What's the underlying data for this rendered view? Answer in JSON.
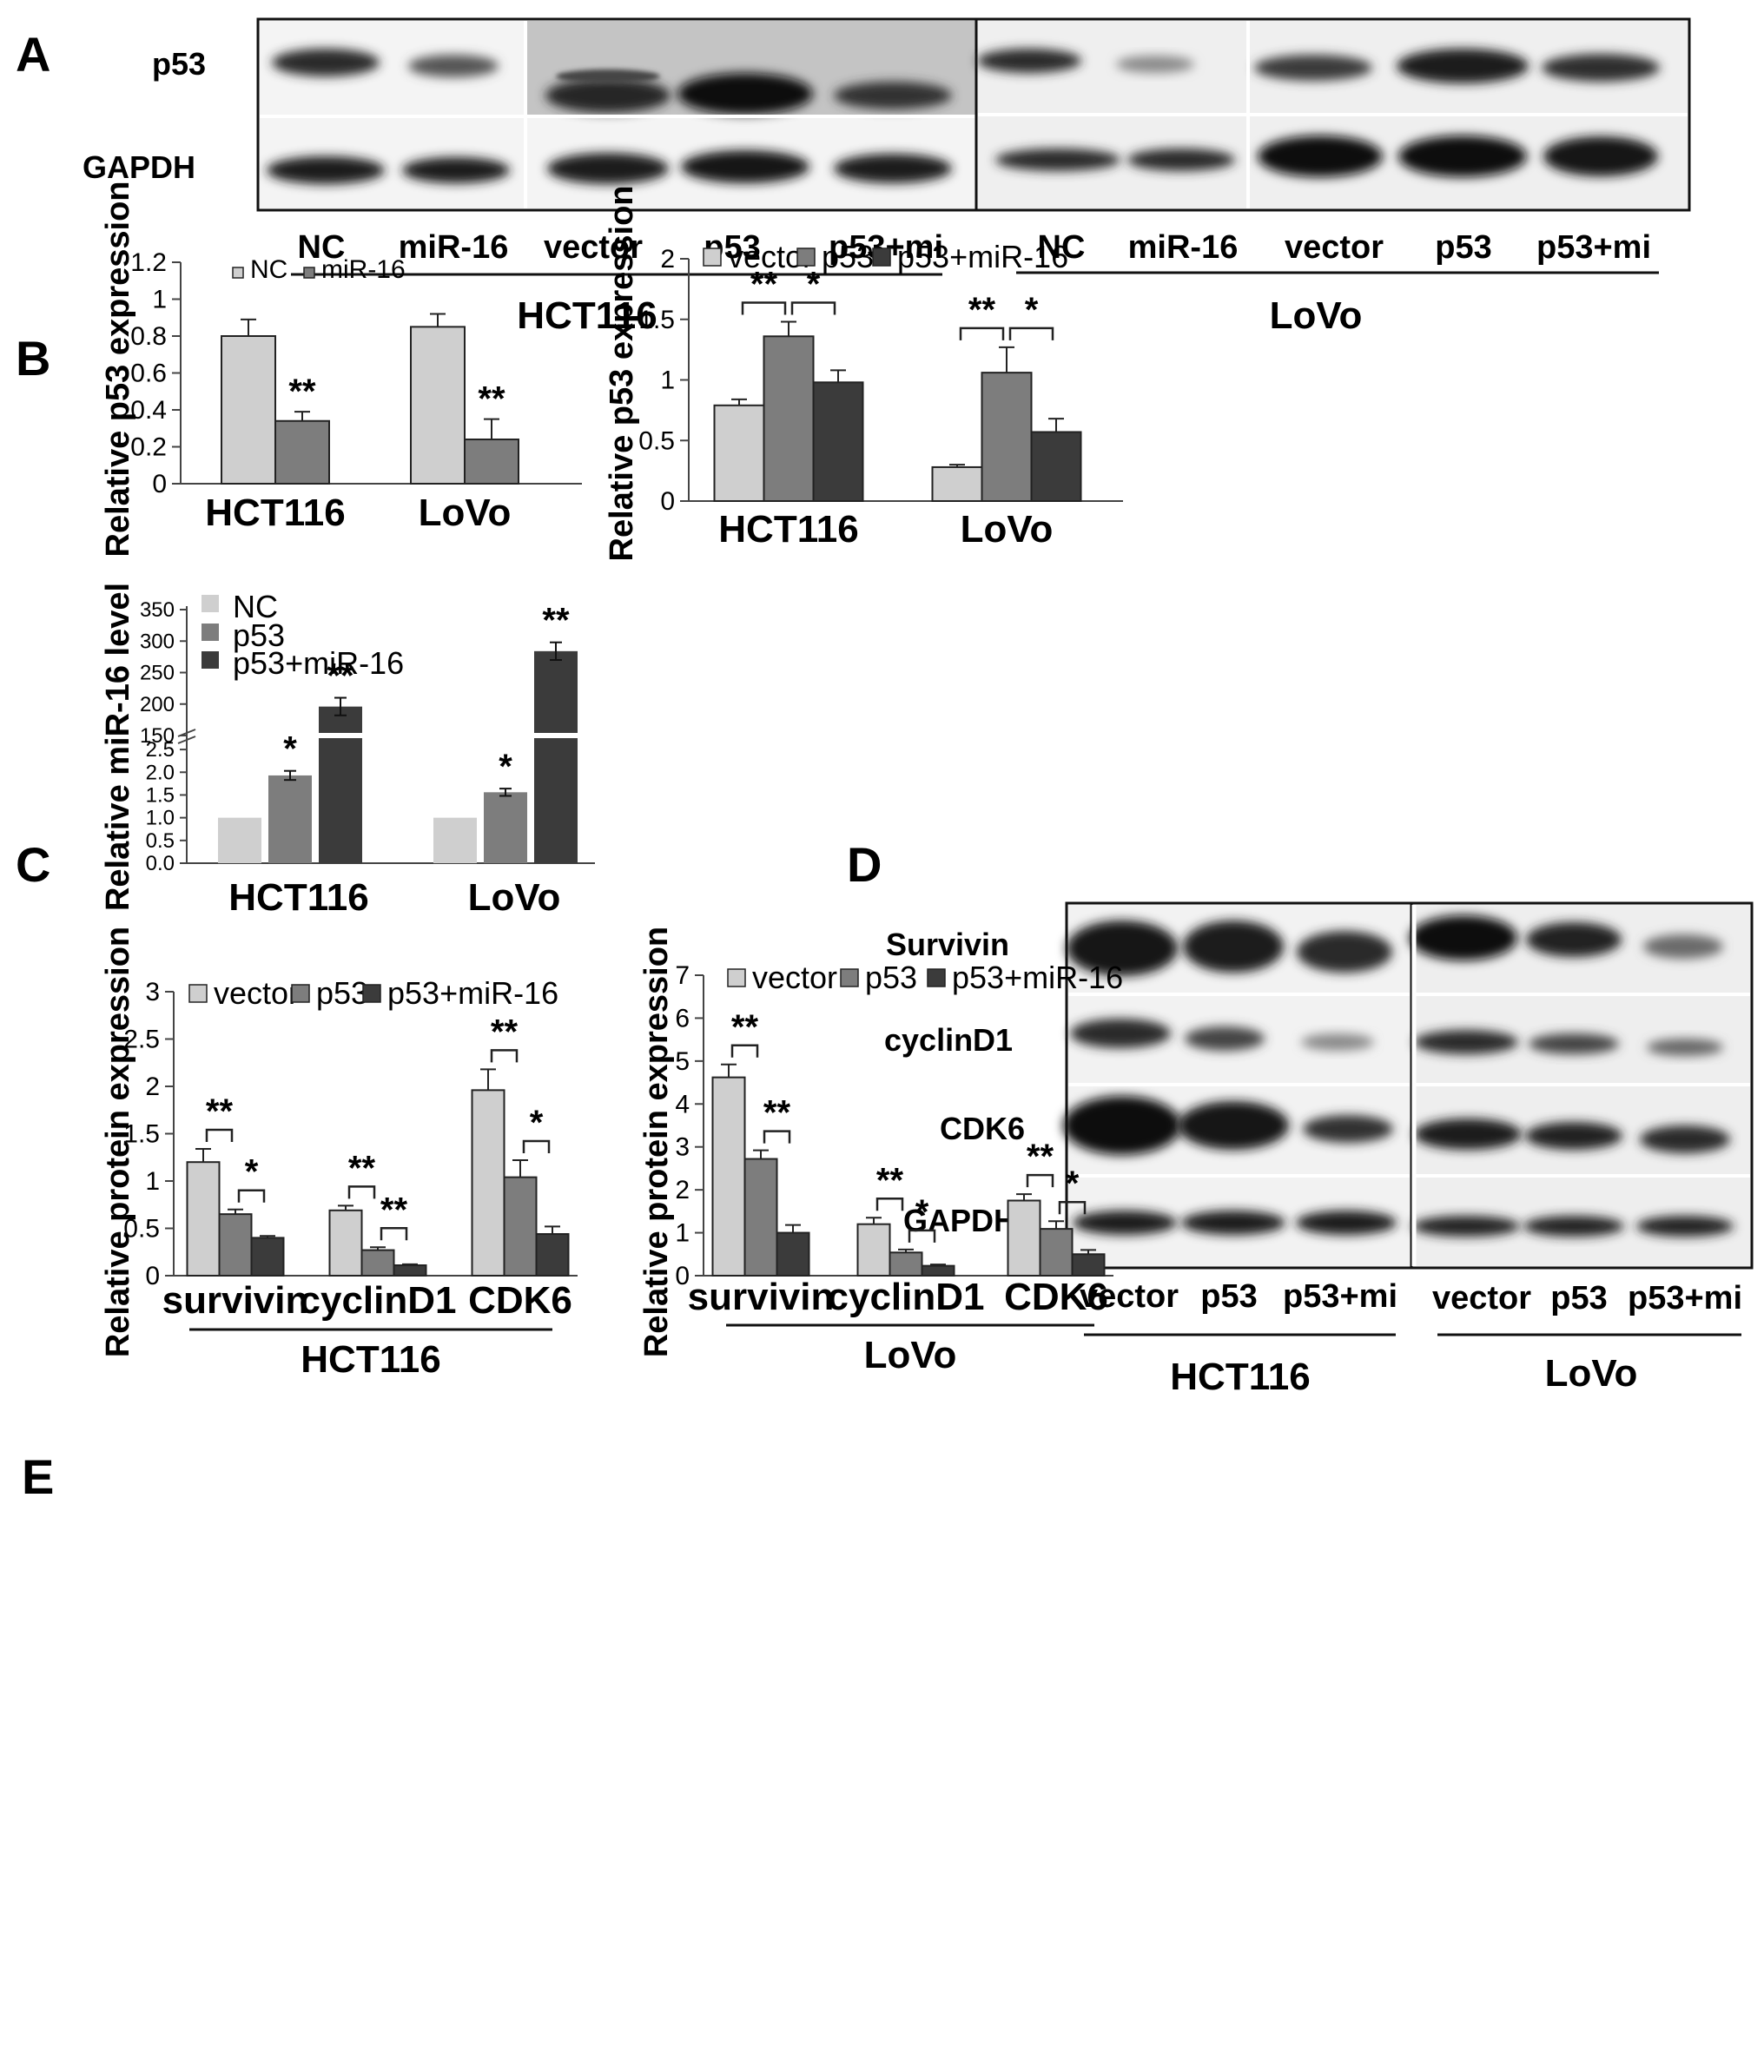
{
  "colors": {
    "light": "#cfcfcf",
    "mid": "#7d7d7d",
    "dark": "#3b3b3b",
    "axis": "#444444"
  },
  "panel_a": {
    "letter": "A",
    "row_labels": [
      "p53",
      "GAPDH"
    ],
    "hct_lanes": [
      "NC",
      "miR-16",
      "vector",
      "p53",
      "p53+mi"
    ],
    "lovo_lanes": [
      "NC",
      "miR-16",
      "vector",
      "p53",
      "p53+mi"
    ],
    "hct_label": "HCT116",
    "lovo_label": "LoVo"
  },
  "panel_b_letter": "B",
  "panel_c_letter": "C",
  "panel_d": {
    "letter": "D",
    "row_labels": [
      "Survivin",
      "cyclinD1",
      "CDK6",
      "GAPDH"
    ],
    "hct_lanes": [
      "vector",
      "p53",
      "p53+mi"
    ],
    "lovo_lanes": [
      "vector",
      "p53",
      "p53+mi"
    ],
    "hct_label": "HCT116",
    "lovo_label": "LoVo"
  },
  "panel_e_letter": "E",
  "chart_data": [
    {
      "id": "b-left",
      "type": "bar",
      "ylabel": "Relative p53  expression",
      "categories": [
        "HCT116",
        "LoVo"
      ],
      "yticks": [
        "0",
        "0.2",
        "0.4",
        "0.6",
        "0.8",
        "1",
        "1.2"
      ],
      "ylim": [
        0,
        1.2
      ],
      "series": [
        {
          "name": "NC",
          "color": "#cfcfcf",
          "values": [
            0.8,
            0.85
          ],
          "errors": [
            0.09,
            0.07
          ]
        },
        {
          "name": "miR-16",
          "color": "#7d7d7d",
          "values": [
            0.34,
            0.24
          ],
          "errors": [
            0.05,
            0.11
          ]
        }
      ],
      "annotations": [
        {
          "category": 0,
          "series": 1,
          "text": "**"
        },
        {
          "category": 1,
          "series": 1,
          "text": "**"
        }
      ],
      "legend": "top"
    },
    {
      "id": "b-right",
      "type": "bar",
      "ylabel": "Relative p53 expression",
      "categories": [
        "HCT116",
        "LoVo"
      ],
      "yticks": [
        "0",
        "0.5",
        "1",
        "1.5",
        "2"
      ],
      "ylim": [
        0,
        2
      ],
      "series": [
        {
          "name": "vector",
          "color": "#cfcfcf",
          "values": [
            0.79,
            0.28
          ],
          "errors": [
            0.05,
            0.02
          ]
        },
        {
          "name": "p53",
          "color": "#7d7d7d",
          "values": [
            1.36,
            1.06
          ],
          "errors": [
            0.12,
            0.21
          ]
        },
        {
          "name": "p53+miR-16",
          "color": "#3b3b3b",
          "values": [
            0.98,
            0.57
          ],
          "errors": [
            0.1,
            0.11
          ]
        }
      ],
      "brackets": [
        {
          "category": 0,
          "from": 0,
          "to": 1,
          "text": "**"
        },
        {
          "category": 0,
          "from": 1,
          "to": 2,
          "text": "*"
        },
        {
          "category": 1,
          "from": 0,
          "to": 1,
          "text": "**"
        },
        {
          "category": 1,
          "from": 1,
          "to": 2,
          "text": "*"
        }
      ],
      "legend": "top"
    },
    {
      "id": "c",
      "type": "bar",
      "ylabel": "Relative miR-16 level",
      "categories": [
        "HCT116",
        "LoVo"
      ],
      "broken_axis": true,
      "lower_ticks": [
        "0.0",
        "0.5",
        "1.0",
        "1.5",
        "2.0",
        "2.5"
      ],
      "lower_range": [
        0,
        2.75
      ],
      "upper_ticks": [
        "150",
        "200",
        "250",
        "300",
        "350"
      ],
      "upper_range": [
        150,
        350
      ],
      "series": [
        {
          "name": "NC",
          "color": "#cfcfcf",
          "values": [
            1.0,
            1.0
          ],
          "errors": [
            0,
            0
          ]
        },
        {
          "name": "p53",
          "color": "#7d7d7d",
          "values": [
            1.93,
            1.56
          ],
          "errors": [
            0.1,
            0.08
          ]
        },
        {
          "name": "p53+miR-16",
          "color": "#3b3b3b",
          "values": [
            196,
            284
          ],
          "errors": [
            14,
            14
          ]
        }
      ],
      "annotations": [
        {
          "category": 0,
          "series": 1,
          "text": "*"
        },
        {
          "category": 0,
          "series": 2,
          "text": "**"
        },
        {
          "category": 1,
          "series": 1,
          "text": "*"
        },
        {
          "category": 1,
          "series": 2,
          "text": "**"
        }
      ],
      "legend": "top-left"
    },
    {
      "id": "e-left",
      "type": "bar",
      "ylabel": "Relative protein expression",
      "categories": [
        "survivin",
        "cyclinD1",
        "CDK6"
      ],
      "group_label": "HCT116",
      "yticks": [
        "0",
        "0.5",
        "1",
        "1.5",
        "2",
        "2.5",
        "3"
      ],
      "ylim": [
        0,
        3
      ],
      "series": [
        {
          "name": "vector",
          "color": "#cfcfcf",
          "values": [
            1.2,
            0.69,
            1.96
          ],
          "errors": [
            0.14,
            0.05,
            0.22
          ]
        },
        {
          "name": "p53",
          "color": "#7d7d7d",
          "values": [
            0.65,
            0.27,
            1.04
          ],
          "errors": [
            0.05,
            0.03,
            0.18
          ]
        },
        {
          "name": "p53+miR-16",
          "color": "#3b3b3b",
          "values": [
            0.4,
            0.11,
            0.44
          ],
          "errors": [
            0.02,
            0.01,
            0.08
          ]
        }
      ],
      "brackets": [
        {
          "category": 0,
          "from": 0,
          "to": 1,
          "text": "**"
        },
        {
          "category": 0,
          "from": 1,
          "to": 2,
          "text": "*"
        },
        {
          "category": 1,
          "from": 0,
          "to": 1,
          "text": "**"
        },
        {
          "category": 1,
          "from": 1,
          "to": 2,
          "text": "**"
        },
        {
          "category": 2,
          "from": 0,
          "to": 1,
          "text": "**"
        },
        {
          "category": 2,
          "from": 1,
          "to": 2,
          "text": "*"
        }
      ],
      "legend": "top"
    },
    {
      "id": "e-right",
      "type": "bar",
      "ylabel": "Relative protein expression",
      "categories": [
        "survivin",
        "cyclinD1",
        "CDK6"
      ],
      "group_label": "LoVo",
      "yticks": [
        "0",
        "1",
        "2",
        "3",
        "4",
        "5",
        "6",
        "7"
      ],
      "ylim": [
        0,
        7
      ],
      "series": [
        {
          "name": "vector",
          "color": "#cfcfcf",
          "values": [
            4.62,
            1.2,
            1.75
          ],
          "errors": [
            0.3,
            0.15,
            0.15
          ]
        },
        {
          "name": "p53",
          "color": "#7d7d7d",
          "values": [
            2.72,
            0.54,
            1.09
          ],
          "errors": [
            0.2,
            0.07,
            0.18
          ]
        },
        {
          "name": "p53+miR-16",
          "color": "#3b3b3b",
          "values": [
            1.0,
            0.23,
            0.5
          ],
          "errors": [
            0.18,
            0.03,
            0.1
          ]
        }
      ],
      "brackets": [
        {
          "category": 0,
          "from": 0,
          "to": 1,
          "text": "**"
        },
        {
          "category": 0,
          "from": 1,
          "to": 2,
          "text": "**"
        },
        {
          "category": 1,
          "from": 0,
          "to": 1,
          "text": "**"
        },
        {
          "category": 1,
          "from": 1,
          "to": 2,
          "text": "*"
        },
        {
          "category": 2,
          "from": 0,
          "to": 1,
          "text": "**"
        },
        {
          "category": 2,
          "from": 1,
          "to": 2,
          "text": "*"
        }
      ],
      "legend": "top"
    }
  ]
}
